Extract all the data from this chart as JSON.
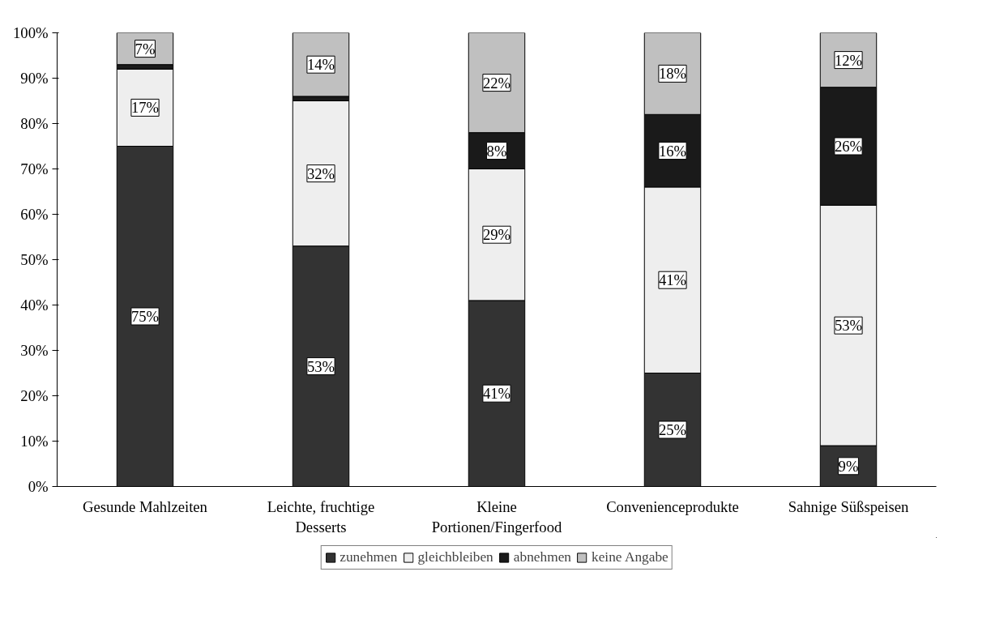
{
  "chart_data": {
    "type": "bar",
    "stacked": true,
    "categories": [
      "Gesunde Mahlzeiten",
      "Leichte, fruchtige\nDesserts",
      "Kleine\nPortionen/Fingerfood",
      "Convenienceprodukte",
      "Sahnige Süßspeisen"
    ],
    "series": [
      {
        "name": "zunehmen",
        "color": "#333333",
        "values": [
          75,
          53,
          41,
          25,
          9
        ],
        "value_labels": [
          "75%",
          "53%",
          "41%",
          "25%",
          "9%"
        ]
      },
      {
        "name": "gleichbleiben",
        "color": "#eeeeee",
        "values": [
          17,
          32,
          29,
          41,
          53
        ],
        "value_labels": [
          "17%",
          "32%",
          "29%",
          "41%",
          "53%"
        ]
      },
      {
        "name": "abnehmen",
        "color": "#1a1a1a",
        "values": [
          1,
          1,
          8,
          16,
          26
        ],
        "value_labels": [
          null,
          null,
          "8%",
          "16%",
          "26%"
        ]
      },
      {
        "name": "keine Angabe",
        "color": "#c0c0c0",
        "values": [
          7,
          14,
          22,
          18,
          12
        ],
        "value_labels": [
          "7%",
          "14%",
          "22%",
          "18%",
          "12%"
        ]
      }
    ],
    "ylim": [
      0,
      100
    ],
    "yticks": [
      {
        "value": 0,
        "label": "0%"
      },
      {
        "value": 10,
        "label": "10%"
      },
      {
        "value": 20,
        "label": "20%"
      },
      {
        "value": 30,
        "label": "30%"
      },
      {
        "value": 40,
        "label": "40%"
      },
      {
        "value": 50,
        "label": "50%"
      },
      {
        "value": 60,
        "label": "60%"
      },
      {
        "value": 70,
        "label": "70%"
      },
      {
        "value": 80,
        "label": "80%"
      },
      {
        "value": 90,
        "label": "90%"
      },
      {
        "value": 100,
        "label": "100%"
      }
    ],
    "grid": false,
    "legend": "bottom"
  }
}
